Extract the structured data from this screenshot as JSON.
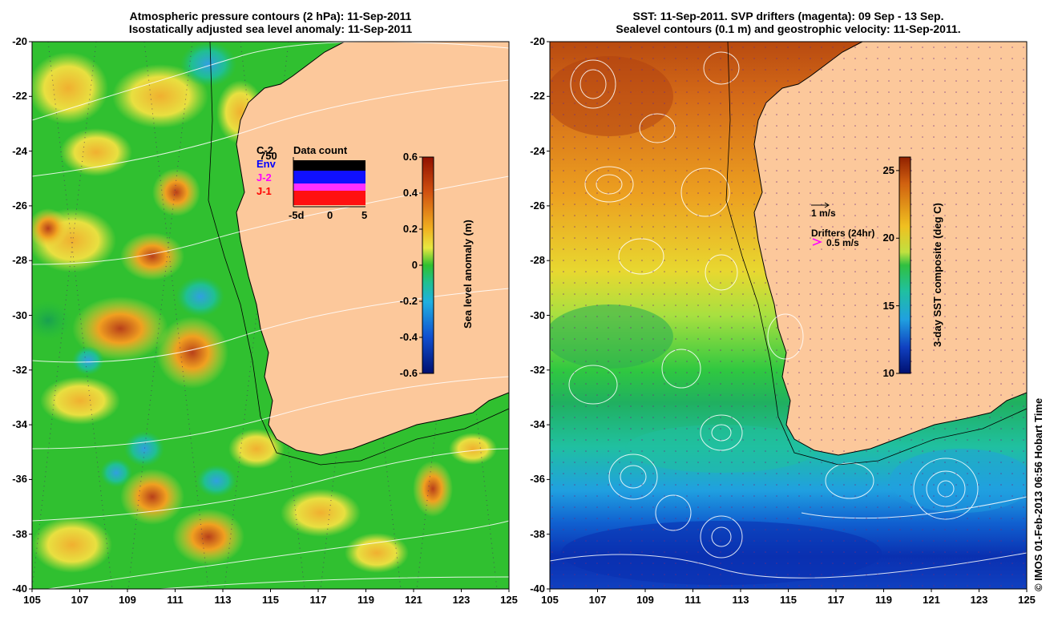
{
  "left_panel": {
    "title_line1": "Atmospheric pressure contours (2 hPa): 11-Sep-2011",
    "title_line2": "Isostatically adjusted sea level anomaly: 11-Sep-2011",
    "lat_ticks": [
      "-20",
      "-22",
      "-24",
      "-26",
      "-28",
      "-30",
      "-32",
      "-34",
      "-36",
      "-38",
      "-40"
    ],
    "lon_ticks": [
      "105",
      "107",
      "109",
      "111",
      "113",
      "115",
      "117",
      "119",
      "121",
      "123",
      "125"
    ],
    "colorbar": {
      "label": "Sea level anomaly (m)",
      "ticks": [
        "0.6",
        "0.4",
        "0.2",
        "0",
        "-0.2",
        "-0.4",
        "-0.6"
      ],
      "range": [
        -0.6,
        0.6
      ]
    },
    "data_count": {
      "title": "Data count",
      "tick_top": "750",
      "x_ticks": [
        "-5d",
        "0",
        "5"
      ],
      "missions": [
        {
          "label": "C-2",
          "color": "#000000"
        },
        {
          "label": "Env",
          "color": "#0000ff"
        },
        {
          "label": "J-2",
          "color": "#ff00ff"
        },
        {
          "label": "J-1",
          "color": "#ff0000"
        }
      ]
    }
  },
  "right_panel": {
    "title_line1": "SST: 11-Sep-2011. SVP drifters (magenta): 09 Sep - 13 Sep.",
    "title_line2": "Sealevel contours (0.1 m) and geostrophic velocity: 11-Sep-2011.",
    "lat_ticks": [
      "-20",
      "-22",
      "-24",
      "-26",
      "-28",
      "-30",
      "-32",
      "-34",
      "-36",
      "-38",
      "-40"
    ],
    "lon_ticks": [
      "105",
      "107",
      "109",
      "111",
      "113",
      "115",
      "117",
      "119",
      "121",
      "123",
      "125"
    ],
    "colorbar": {
      "label": "3-day SST composite (deg C)",
      "ticks": [
        "25",
        "20",
        "15",
        "10"
      ],
      "range": [
        10,
        26
      ]
    },
    "velocity_scale": "1 m/s",
    "drifter_legend_title": "Drifters (24hr)",
    "drifter_legend_value": "0.5 m/s"
  },
  "credit": "© IMOS 01-Feb-2013 06:56 Hobart Time",
  "colors": {
    "land": "#fcc89b",
    "sla_high": "#a01e00",
    "sla_mid": "#22cc22",
    "sla_low": "#001a80",
    "sst_warm": "#c0501a",
    "sst_cool": "#0a2cb0"
  }
}
